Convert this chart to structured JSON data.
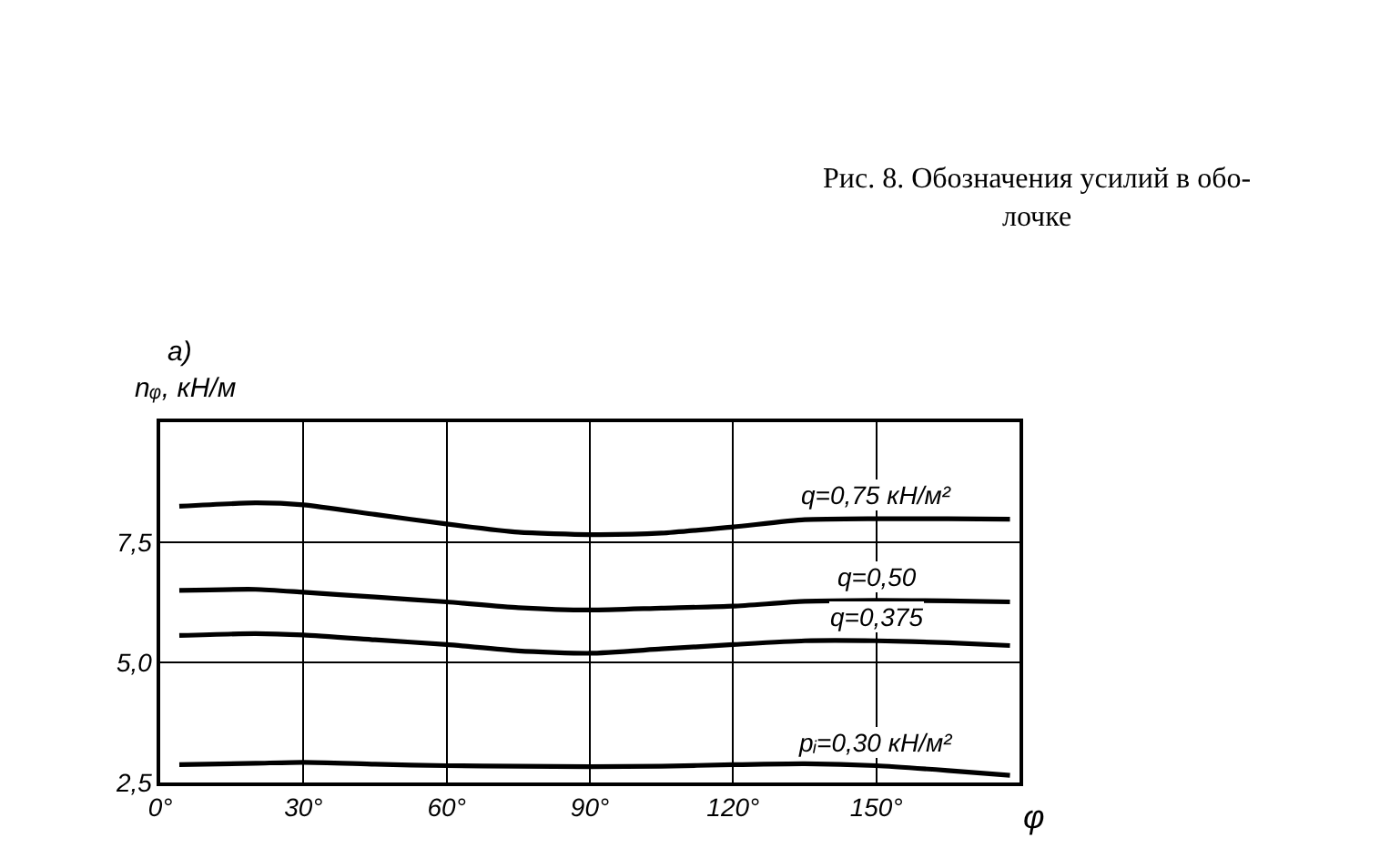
{
  "chart_data": {
    "type": "line",
    "xlabel": "φ",
    "ylabel": "nᵩ, кН/м",
    "x": [
      4,
      20,
      30,
      45,
      60,
      75,
      90,
      105,
      120,
      135,
      150,
      165,
      178
    ],
    "series": [
      {
        "name": "q=0,75 кН/м²",
        "color": "#000000",
        "values": [
          8.25,
          8.32,
          8.28,
          8.08,
          7.88,
          7.71,
          7.66,
          7.69,
          7.82,
          7.97,
          7.99,
          7.99,
          7.98
        ]
      },
      {
        "name": "q=0,50",
        "color": "#000000",
        "values": [
          6.5,
          6.52,
          6.46,
          6.36,
          6.26,
          6.14,
          6.09,
          6.13,
          6.17,
          6.27,
          6.29,
          6.28,
          6.26
        ]
      },
      {
        "name": "q=0,375",
        "color": "#000000",
        "values": [
          5.56,
          5.6,
          5.57,
          5.47,
          5.37,
          5.24,
          5.19,
          5.28,
          5.37,
          5.45,
          5.45,
          5.41,
          5.35
        ]
      },
      {
        "name": "pᵢ=0,30 кН/м²",
        "color": "#000000",
        "values": [
          2.87,
          2.9,
          2.92,
          2.88,
          2.85,
          2.84,
          2.83,
          2.84,
          2.87,
          2.89,
          2.85,
          2.75,
          2.65
        ]
      }
    ],
    "xlim": [
      0,
      180
    ],
    "ylim": [
      2.5,
      10
    ],
    "xticks": [
      {
        "value": 0,
        "label": "0°"
      },
      {
        "value": 30,
        "label": "30°"
      },
      {
        "value": 60,
        "label": "60°"
      },
      {
        "value": 90,
        "label": "90°"
      },
      {
        "value": 120,
        "label": "120°"
      },
      {
        "value": 150,
        "label": "150°"
      }
    ],
    "yticks": [
      {
        "value": 2.5,
        "label": "2,5"
      },
      {
        "value": 5,
        "label": "5,0"
      },
      {
        "value": 7.5,
        "label": "7,5"
      }
    ],
    "grid": true,
    "legend": false,
    "marker": "none",
    "line_style": "solid",
    "annotations": [
      "а)",
      "Рис. 8. Обозначения усилий в обо-\nлочке"
    ]
  }
}
